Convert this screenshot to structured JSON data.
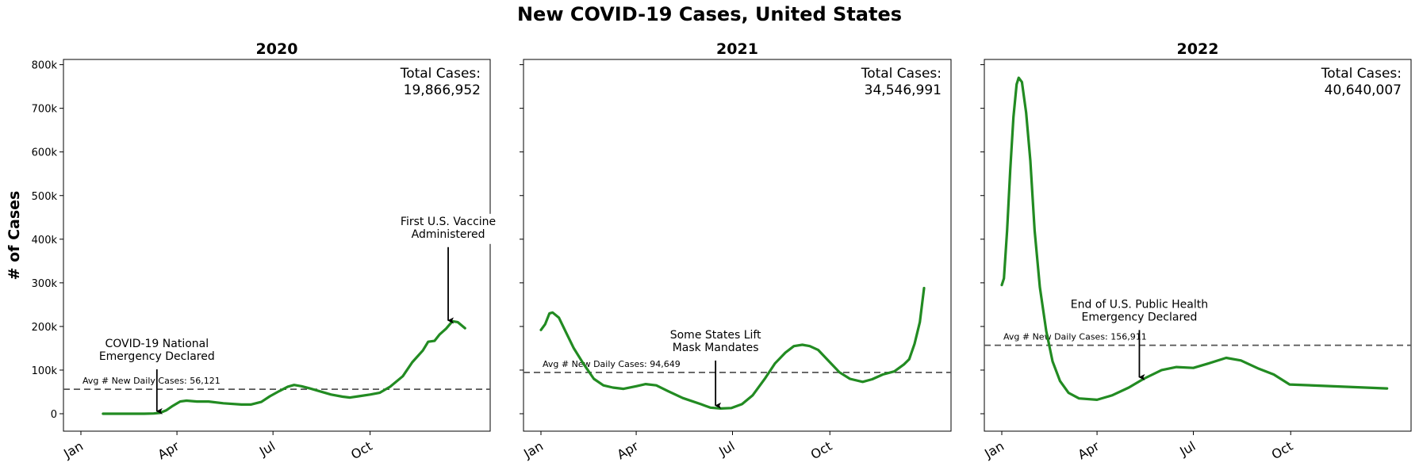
{
  "title": "New COVID-19 Cases, United States",
  "ylabel": "# of Cases",
  "colors": {
    "line": "#228b22",
    "avg_line": "#555555",
    "arrow": "#000000"
  },
  "yticks": [
    {
      "value": 0,
      "label": "0"
    },
    {
      "value": 100000,
      "label": "100k"
    },
    {
      "value": 200000,
      "label": "200k"
    },
    {
      "value": 300000,
      "label": "300k"
    },
    {
      "value": 400000,
      "label": "400k"
    },
    {
      "value": 500000,
      "label": "500k"
    },
    {
      "value": 600000,
      "label": "600k"
    },
    {
      "value": 700000,
      "label": "700k"
    },
    {
      "value": 800000,
      "label": "800k"
    }
  ],
  "chart_data": [
    {
      "type": "line",
      "title": "2020",
      "ylabel": "# of Cases",
      "xlim": [
        "2020-01-01",
        "2021-01-01"
      ],
      "ylim": [
        0,
        800000
      ],
      "xticks": [
        {
          "date": "2020-01-01",
          "label": "Jan"
        },
        {
          "date": "2020-04-01",
          "label": "Apr"
        },
        {
          "date": "2020-07-01",
          "label": "Jul"
        },
        {
          "date": "2020-10-01",
          "label": "Oct"
        }
      ],
      "total_label": "Total Cases:",
      "total_value": "19,866,952",
      "avg_label": "Avg # New Daily Cases: 56,121",
      "avg_value": 56121,
      "annotations": [
        {
          "lines": [
            "COVID-19 National",
            "Emergency Declared"
          ],
          "date": "2020-03-13",
          "value": 2000,
          "text_value": 160000
        },
        {
          "lines": [
            "First U.S. Vaccine",
            "Administered"
          ],
          "date": "2020-12-14",
          "value": 210000,
          "text_value": 440000
        }
      ],
      "series": [
        {
          "x": [
            "2020-01-22",
            "2020-02-15",
            "2020-03-01",
            "2020-03-10",
            "2020-03-16",
            "2020-03-22",
            "2020-03-28",
            "2020-04-04",
            "2020-04-10",
            "2020-04-20",
            "2020-05-01",
            "2020-05-15",
            "2020-06-01",
            "2020-06-10",
            "2020-06-20",
            "2020-06-28",
            "2020-07-07",
            "2020-07-15",
            "2020-07-21",
            "2020-07-28",
            "2020-08-05",
            "2020-08-15",
            "2020-08-25",
            "2020-09-05",
            "2020-09-12",
            "2020-09-20",
            "2020-10-01",
            "2020-10-10",
            "2020-10-20",
            "2020-11-01",
            "2020-11-10",
            "2020-11-20",
            "2020-11-25",
            "2020-12-01",
            "2020-12-06",
            "2020-12-12",
            "2020-12-18",
            "2020-12-23",
            "2020-12-30"
          ],
          "y": [
            0,
            0,
            0,
            500,
            2000,
            8000,
            18000,
            28000,
            30000,
            28000,
            28000,
            24000,
            21000,
            21000,
            27000,
            40000,
            52000,
            62000,
            66000,
            63000,
            58000,
            51000,
            44000,
            39000,
            37000,
            40000,
            44000,
            48000,
            62000,
            86000,
            118000,
            145000,
            165000,
            167000,
            182000,
            195000,
            212000,
            210000,
            196000
          ]
        }
      ]
    },
    {
      "type": "line",
      "title": "2021",
      "xlim": [
        "2021-01-01",
        "2022-01-01"
      ],
      "ylim": [
        0,
        800000
      ],
      "xticks": [
        {
          "date": "2021-01-01",
          "label": "Jan"
        },
        {
          "date": "2021-04-01",
          "label": "Apr"
        },
        {
          "date": "2021-07-01",
          "label": "Jul"
        },
        {
          "date": "2021-10-01",
          "label": "Oct"
        }
      ],
      "total_label": "Total Cases:",
      "total_value": "34,546,991",
      "avg_label": "Avg # New Daily Cases: 94,649",
      "avg_value": 94649,
      "annotations": [
        {
          "lines": [
            "Some States Lift",
            "Mask Mandates"
          ],
          "date": "2021-06-15",
          "value": 15000,
          "text_value": 180000
        }
      ],
      "series": [
        {
          "x": [
            "2021-01-01",
            "2021-01-05",
            "2021-01-09",
            "2021-01-12",
            "2021-01-18",
            "2021-01-25",
            "2021-02-01",
            "2021-02-10",
            "2021-02-20",
            "2021-03-01",
            "2021-03-10",
            "2021-03-20",
            "2021-04-01",
            "2021-04-10",
            "2021-04-20",
            "2021-05-01",
            "2021-05-15",
            "2021-06-01",
            "2021-06-10",
            "2021-06-20",
            "2021-06-30",
            "2021-07-10",
            "2021-07-20",
            "2021-08-01",
            "2021-08-10",
            "2021-08-20",
            "2021-08-28",
            "2021-09-05",
            "2021-09-12",
            "2021-09-20",
            "2021-10-01",
            "2021-10-10",
            "2021-10-20",
            "2021-11-01",
            "2021-11-10",
            "2021-11-20",
            "2021-12-01",
            "2021-12-10",
            "2021-12-15",
            "2021-12-20",
            "2021-12-25",
            "2021-12-29"
          ],
          "y": [
            192000,
            205000,
            230000,
            232000,
            220000,
            185000,
            150000,
            115000,
            80000,
            65000,
            60000,
            57000,
            63000,
            68000,
            65000,
            52000,
            36000,
            22000,
            14000,
            12000,
            13000,
            22000,
            42000,
            82000,
            115000,
            140000,
            155000,
            158000,
            155000,
            146000,
            118000,
            95000,
            80000,
            73000,
            79000,
            90000,
            97000,
            113000,
            125000,
            160000,
            210000,
            288000
          ]
        }
      ]
    },
    {
      "type": "line",
      "title": "2022",
      "xlim": [
        "2022-01-01",
        "2023-01-01"
      ],
      "ylim": [
        0,
        800000
      ],
      "xticks": [
        {
          "date": "2022-01-01",
          "label": "Jan"
        },
        {
          "date": "2022-04-01",
          "label": "Apr"
        },
        {
          "date": "2022-07-01",
          "label": "Jul"
        },
        {
          "date": "2022-10-01",
          "label": "Oct"
        }
      ],
      "total_label": "Total Cases:",
      "total_value": "40,640,007",
      "avg_label": "Avg # New Daily Cases: 156,911",
      "avg_value": 156911,
      "annotations": [
        {
          "lines": [
            "End of U.S. Public Health",
            "Emergency Declared"
          ],
          "date": "2022-05-11",
          "value": 80000,
          "text_value": 250000
        }
      ],
      "series": [
        {
          "x": [
            "2022-01-01",
            "2022-01-03",
            "2022-01-06",
            "2022-01-09",
            "2022-01-12",
            "2022-01-15",
            "2022-01-17",
            "2022-01-20",
            "2022-01-24",
            "2022-01-28",
            "2022-02-01",
            "2022-02-06",
            "2022-02-12",
            "2022-02-18",
            "2022-02-25",
            "2022-03-05",
            "2022-03-15",
            "2022-04-01",
            "2022-04-15",
            "2022-05-01",
            "2022-05-15",
            "2022-06-01",
            "2022-06-15",
            "2022-07-01",
            "2022-07-15",
            "2022-08-01",
            "2022-08-15",
            "2022-09-01",
            "2022-09-15",
            "2022-09-30",
            "2022-12-31"
          ],
          "y": [
            295000,
            310000,
            420000,
            560000,
            680000,
            755000,
            770000,
            760000,
            690000,
            580000,
            420000,
            290000,
            190000,
            120000,
            75000,
            48000,
            35000,
            32000,
            42000,
            60000,
            80000,
            100000,
            107000,
            105000,
            115000,
            128000,
            122000,
            103000,
            90000,
            67000,
            58000
          ]
        }
      ]
    }
  ]
}
